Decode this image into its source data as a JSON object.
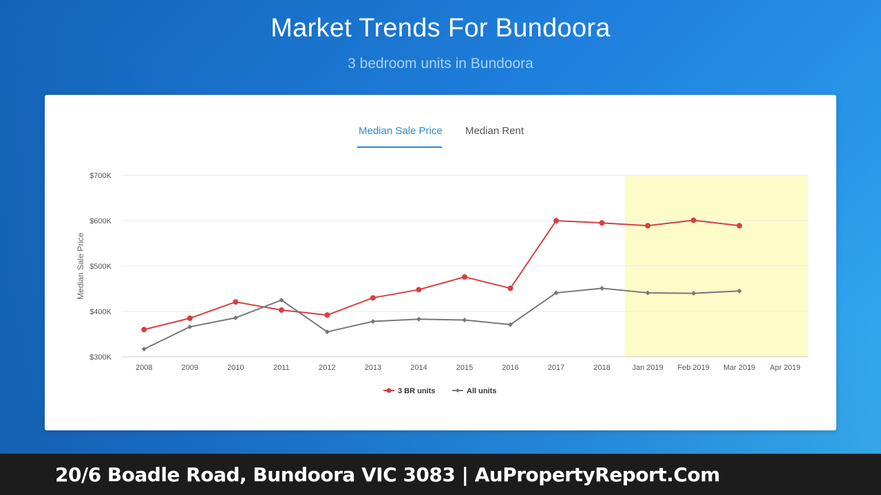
{
  "header": {
    "title": "Market Trends For Bundoora",
    "subtitle": "3 bedroom units in Bundoora"
  },
  "tabs": [
    {
      "label": "Median Sale Price",
      "active": true
    },
    {
      "label": "Median Rent",
      "active": false
    }
  ],
  "footer": {
    "text": "20/6 Boadle Road, Bundoora VIC 3083 | AuPropertyReport.Com"
  },
  "colors": {
    "accent": "#2a8ad8",
    "series_3br": "#d64040",
    "series_all": "#777777",
    "forecast_band": "#fdfcc8"
  },
  "chart_data": {
    "type": "line",
    "title": "",
    "xlabel": "",
    "ylabel": "Median Sale Price",
    "categories": [
      "2008",
      "2009",
      "2010",
      "2011",
      "2012",
      "2013",
      "2014",
      "2015",
      "2016",
      "2017",
      "2018",
      "Jan 2019",
      "Feb 2019",
      "Mar 2019",
      "Apr 2019"
    ],
    "ylim": [
      300000,
      700000
    ],
    "yticks": [
      {
        "value": 300000,
        "label": "$300K"
      },
      {
        "value": 400000,
        "label": "$400K"
      },
      {
        "value": 500000,
        "label": "$500K"
      },
      {
        "value": 600000,
        "label": "$600K"
      },
      {
        "value": 700000,
        "label": "$700K"
      }
    ],
    "highlight_range": [
      "Jan 2019",
      "Apr 2019"
    ],
    "grid": true,
    "legend_position": "bottom",
    "series": [
      {
        "name": "3 BR units",
        "color": "#d64040",
        "marker": "circle",
        "values": [
          360000,
          385000,
          421000,
          403000,
          392000,
          430000,
          448000,
          476000,
          451000,
          600000,
          595000,
          589000,
          601000,
          589000,
          null
        ]
      },
      {
        "name": "All units",
        "color": "#777777",
        "marker": "diamond",
        "values": [
          317000,
          366000,
          386000,
          425000,
          355000,
          378000,
          383000,
          381000,
          371000,
          441000,
          451000,
          441000,
          440000,
          445000,
          null
        ]
      }
    ]
  }
}
